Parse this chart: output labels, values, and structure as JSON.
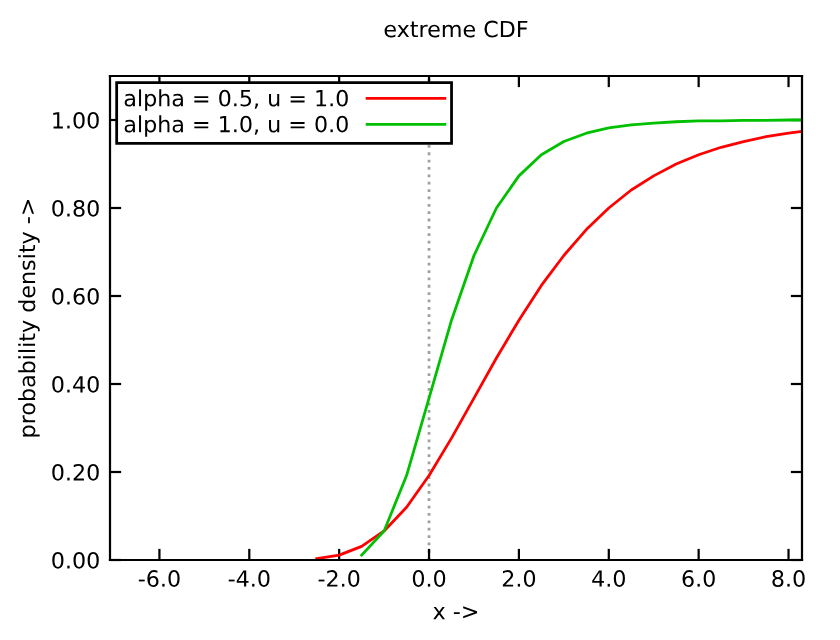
{
  "chart_data": {
    "type": "line",
    "title": "extreme CDF",
    "xlabel": "x ->",
    "ylabel": "probability density ->",
    "x": [
      -2.5,
      -2,
      -1.5,
      -1,
      -0.5,
      0,
      0.5,
      1,
      1.5,
      2,
      2.5,
      3,
      3.5,
      4,
      4.5,
      5,
      5.5,
      6,
      6.5,
      7,
      7.5,
      8,
      8.3
    ],
    "series": [
      {
        "name": "alpha = 0.5, u = 1.0",
        "color": "#ff0000",
        "values": [
          0.003,
          0.011,
          0.031,
          0.066,
          0.12,
          0.192,
          0.277,
          0.368,
          0.459,
          0.545,
          0.624,
          0.692,
          0.751,
          0.8,
          0.841,
          0.873,
          0.9,
          0.921,
          0.938,
          0.951,
          0.962,
          0.97,
          0.974
        ]
      },
      {
        "name": "alpha = 1.0, u = 0.0",
        "color": "#00c000",
        "values": [
          null,
          null,
          0.011,
          0.066,
          0.192,
          0.368,
          0.545,
          0.692,
          0.8,
          0.873,
          0.921,
          0.951,
          0.97,
          0.982,
          0.989,
          0.993,
          0.996,
          0.998,
          0.998,
          0.999,
          0.999,
          1.0,
          1.0
        ]
      }
    ],
    "xlim": [
      -7.1,
      8.3
    ],
    "ylim": [
      0,
      1.1
    ],
    "xticks": [
      {
        "value": -6,
        "label": "-6.0"
      },
      {
        "value": -4,
        "label": "-4.0"
      },
      {
        "value": -2,
        "label": "-2.0"
      },
      {
        "value": 0,
        "label": "0.0"
      },
      {
        "value": 2,
        "label": "2.0"
      },
      {
        "value": 4,
        "label": "4.0"
      },
      {
        "value": 6,
        "label": "6.0"
      },
      {
        "value": 8,
        "label": "8.0"
      }
    ],
    "yticks": [
      {
        "value": 0,
        "label": "0.00"
      },
      {
        "value": 0.2,
        "label": "0.20"
      },
      {
        "value": 0.4,
        "label": "0.40"
      },
      {
        "value": 0.6,
        "label": "0.60"
      },
      {
        "value": 0.8,
        "label": "0.80"
      },
      {
        "value": 1.0,
        "label": "1.00"
      }
    ],
    "ref_lines": [
      {
        "axis": "x",
        "value": 0,
        "color": "#a0a0a0",
        "line_style": "dotted"
      }
    ],
    "grid": false,
    "legend": "top left",
    "marker": "none",
    "line_style": "solid"
  }
}
